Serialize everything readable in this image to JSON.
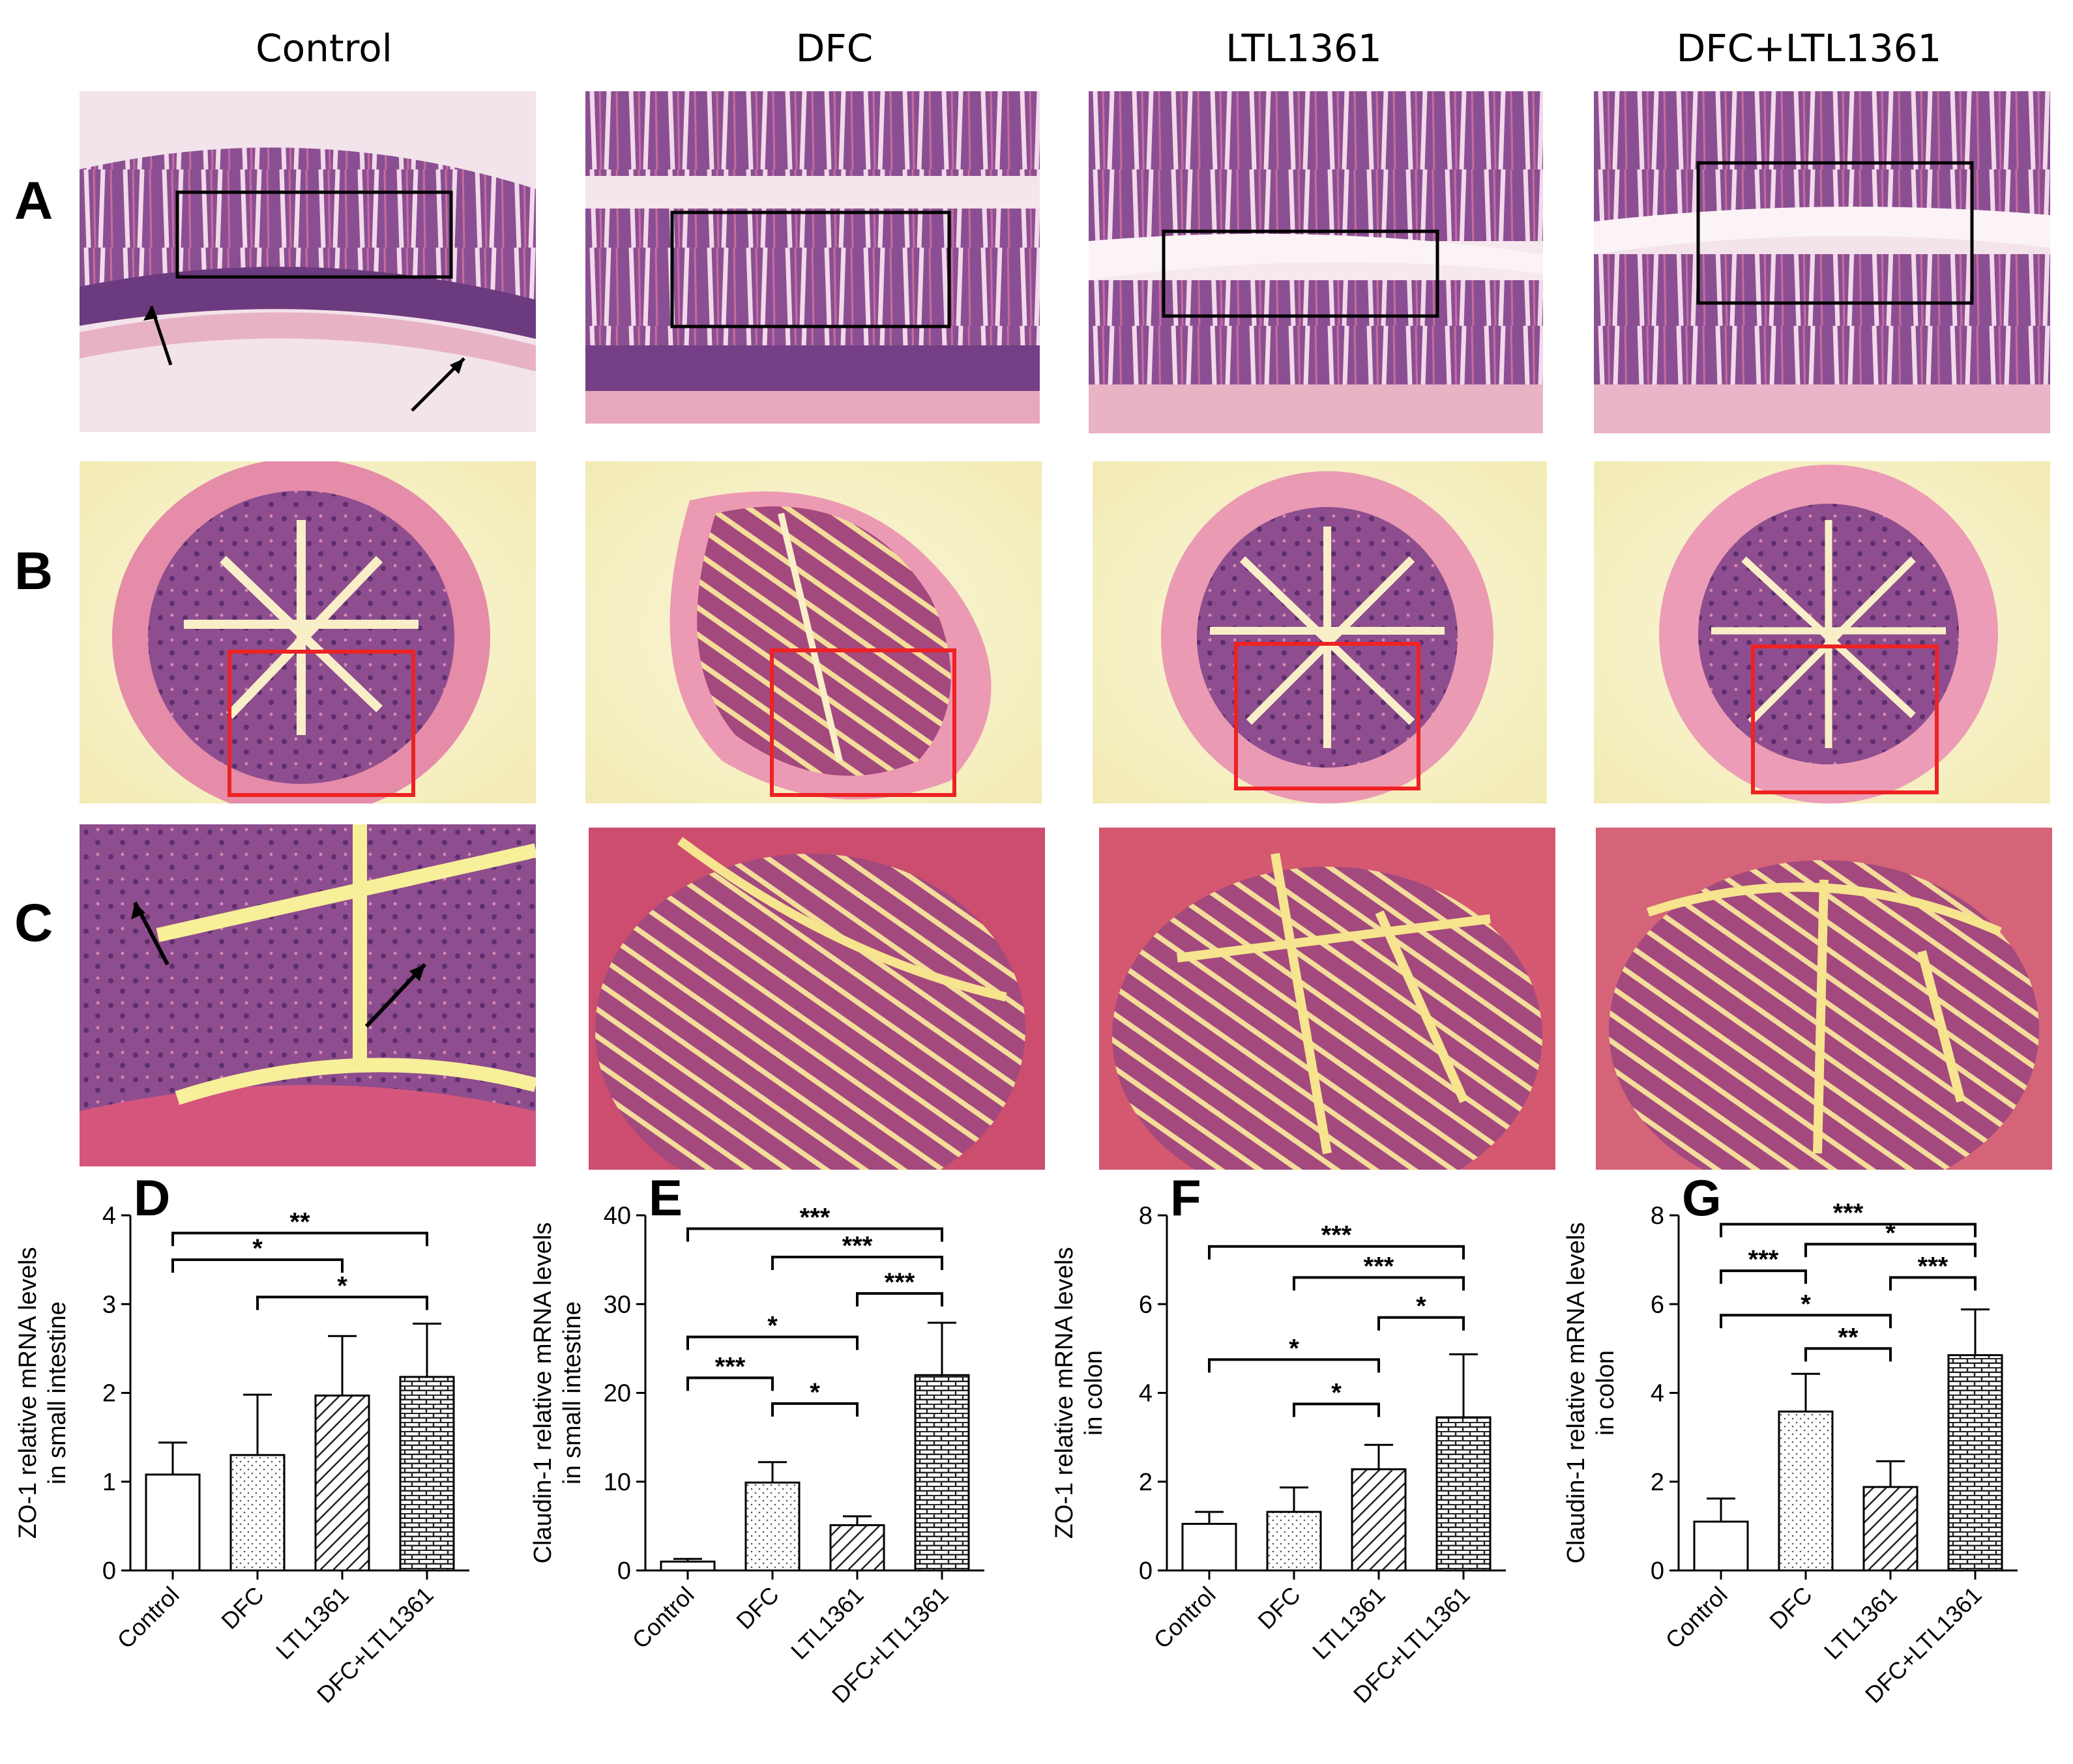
{
  "columns": [
    "Control",
    "DFC",
    "LTL1361",
    "DFC+LTL1361"
  ],
  "rows": [
    "A",
    "B",
    "C"
  ],
  "colors": {
    "tissue_purple": "#7b4a8e",
    "tissue_pink": "#e48aa8",
    "lumen": "#f7f1c8",
    "box_black": "#000000",
    "box_red": "#ee2222"
  },
  "chart_data": [
    {
      "panel": "D",
      "type": "bar",
      "categories": [
        "Control",
        "DFC",
        "LTL1361",
        "DFC+LTL1361"
      ],
      "values": [
        1.08,
        1.3,
        1.97,
        2.18
      ],
      "errors": [
        0.36,
        0.68,
        0.67,
        0.6
      ],
      "ylabel": [
        "ZO-1 relative mRNA levels",
        "in small intestine"
      ],
      "ylim": [
        0,
        4
      ],
      "yticks": [
        "0",
        "1",
        "2",
        "3",
        "4"
      ],
      "patterns": [
        "empty",
        "dots",
        "diagonal",
        "brick"
      ],
      "significance": [
        {
          "from": 0,
          "to": 3,
          "label": "**",
          "y": 3.8
        },
        {
          "from": 0,
          "to": 2,
          "label": "*",
          "y": 3.5
        },
        {
          "from": 1,
          "to": 3,
          "label": "*",
          "y": 3.08
        }
      ]
    },
    {
      "panel": "E",
      "type": "bar",
      "categories": [
        "Control",
        "DFC",
        "LTL1361",
        "DFC+LTL1361"
      ],
      "values": [
        1.0,
        9.9,
        5.1,
        22.0
      ],
      "errors": [
        0.3,
        2.3,
        1.0,
        5.9
      ],
      "ylabel": [
        "Claudin-1 relative mRNA levels",
        "in small intestine"
      ],
      "ylim": [
        0,
        40
      ],
      "yticks": [
        "0",
        "10",
        "20",
        "30",
        "40"
      ],
      "patterns": [
        "empty",
        "dots",
        "diagonal",
        "brick"
      ],
      "significance": [
        {
          "from": 0,
          "to": 3,
          "label": "***",
          "y": 38.5
        },
        {
          "from": 1,
          "to": 3,
          "label": "***",
          "y": 35.3
        },
        {
          "from": 2,
          "to": 3,
          "label": "***",
          "y": 31.2
        },
        {
          "from": 0,
          "to": 2,
          "label": "*",
          "y": 26.3
        },
        {
          "from": 0,
          "to": 1,
          "label": "***",
          "y": 21.7
        },
        {
          "from": 1,
          "to": 2,
          "label": "*",
          "y": 18.8
        }
      ]
    },
    {
      "panel": "F",
      "type": "bar",
      "categories": [
        "Control",
        "DFC",
        "LTL1361",
        "DFC+LTL1361"
      ],
      "values": [
        1.05,
        1.32,
        2.28,
        3.45
      ],
      "errors": [
        0.27,
        0.55,
        0.55,
        1.42
      ],
      "ylabel": [
        "ZO-1 relative mRNA levels",
        "in colon"
      ],
      "ylim": [
        0,
        8
      ],
      "yticks": [
        "0",
        "2",
        "4",
        "6",
        "8"
      ],
      "patterns": [
        "empty",
        "dots",
        "diagonal",
        "brick"
      ],
      "significance": [
        {
          "from": 0,
          "to": 3,
          "label": "***",
          "y": 7.3
        },
        {
          "from": 1,
          "to": 3,
          "label": "***",
          "y": 6.6
        },
        {
          "from": 2,
          "to": 3,
          "label": "*",
          "y": 5.7
        },
        {
          "from": 0,
          "to": 2,
          "label": "*",
          "y": 4.75
        },
        {
          "from": 1,
          "to": 2,
          "label": "*",
          "y": 3.75
        }
      ]
    },
    {
      "panel": "G",
      "type": "bar",
      "categories": [
        "Control",
        "DFC",
        "LTL1361",
        "DFC+LTL1361"
      ],
      "values": [
        1.1,
        3.58,
        1.88,
        4.85
      ],
      "errors": [
        0.52,
        0.85,
        0.58,
        1.03
      ],
      "ylabel": [
        "Claudin-1 relative mRNA levels",
        "in colon"
      ],
      "ylim": [
        0,
        8
      ],
      "yticks": [
        "0",
        "2",
        "4",
        "6",
        "8"
      ],
      "patterns": [
        "empty",
        "dots",
        "diagonal",
        "brick"
      ],
      "significance": [
        {
          "from": 0,
          "to": 3,
          "label": "***",
          "y": 7.8
        },
        {
          "from": 1,
          "to": 3,
          "label": "*",
          "y": 7.35
        },
        {
          "from": 0,
          "to": 1,
          "label": "***",
          "y": 6.75
        },
        {
          "from": 2,
          "to": 3,
          "label": "***",
          "y": 6.6
        },
        {
          "from": 0,
          "to": 2,
          "label": "*",
          "y": 5.75
        },
        {
          "from": 1,
          "to": 2,
          "label": "**",
          "y": 5.0
        }
      ]
    }
  ]
}
